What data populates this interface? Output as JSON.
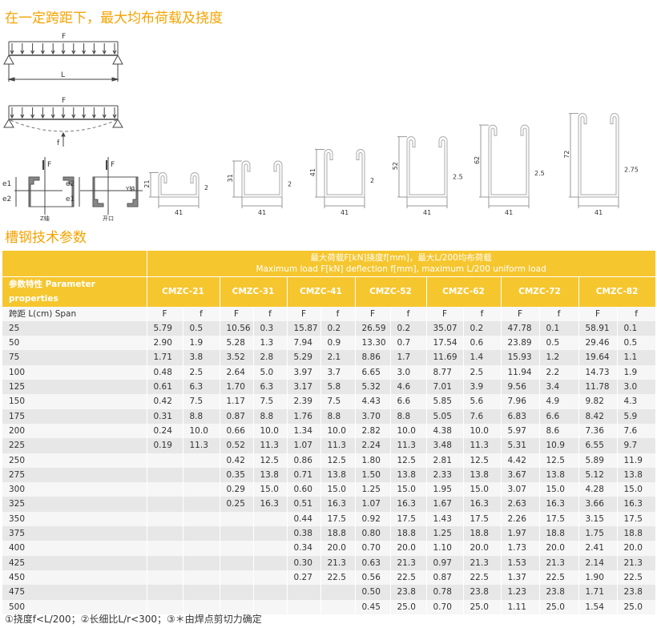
{
  "titles": {
    "load_title": "在一定跨距下，最大均布荷载及挠度",
    "params_title": "槽钢技术参数"
  },
  "diagram_labels": {
    "force": "F",
    "span": "L",
    "deflection": "f",
    "e1": "e1",
    "e2": "e2",
    "z_axis": "Z轴",
    "y_axis": "Y轴",
    "opening": "开口"
  },
  "profiles": [
    {
      "height": "21",
      "width": "41",
      "thickness": "2"
    },
    {
      "height": "31",
      "width": "41",
      "thickness": "2"
    },
    {
      "height": "41",
      "width": "41",
      "thickness": "2"
    },
    {
      "height": "52",
      "width": "41",
      "thickness": "2.5"
    },
    {
      "height": "62",
      "width": "41",
      "thickness": "2.5"
    },
    {
      "height": "72",
      "width": "41",
      "thickness": "2.75"
    }
  ],
  "table": {
    "caption_cn": "最大荷载F[kN]挠度f[mm]，最大L/200均布荷载",
    "caption_en": "Maximum load F[kN] deflection f[mm], maximum L/200 uniform load",
    "param_header": "参数特性 Parameter properties",
    "span_header": "跨距 L(cm)  Span",
    "models": [
      "CMZC-21",
      "CMZC-31",
      "CMZC-41",
      "CMZC-52",
      "CMZC-62",
      "CMZC-72",
      "CMZC-82"
    ],
    "sub": [
      "F",
      "f"
    ],
    "rows": [
      {
        "span": "25",
        "v": [
          "5.79",
          "0.5",
          "10.56",
          "0.3",
          "15.87",
          "0.2",
          "26.59",
          "0.2",
          "35.07",
          "0.2",
          "47.78",
          "0.1",
          "58.91",
          "0.1"
        ]
      },
      {
        "span": "50",
        "v": [
          "2.90",
          "1.9",
          "5.28",
          "1.3",
          "7.94",
          "0.9",
          "13.30",
          "0.7",
          "17.54",
          "0.6",
          "23.89",
          "0.5",
          "29.46",
          "0.5"
        ]
      },
      {
        "span": "75",
        "v": [
          "1.71",
          "3.8",
          "3.52",
          "2.8",
          "5.29",
          "2.1",
          "8.86",
          "1.7",
          "11.69",
          "1.4",
          "15.93",
          "1.2",
          "19.64",
          "1.1"
        ]
      },
      {
        "span": "100",
        "v": [
          "0.48",
          "2.5",
          "2.64",
          "5.0",
          "3.97",
          "3.7",
          "6.65",
          "3.0",
          "8.77",
          "2.5",
          "11.94",
          "2.2",
          "14.73",
          "1.9"
        ]
      },
      {
        "span": "125",
        "v": [
          "0.61",
          "6.3",
          "1.70",
          "6.3",
          "3.17",
          "5.8",
          "5.32",
          "4.6",
          "7.01",
          "3.9",
          "9.56",
          "3.4",
          "11.78",
          "3.0"
        ]
      },
      {
        "span": "150",
        "v": [
          "0.42",
          "7.5",
          "1.17",
          "7.5",
          "2.39",
          "7.5",
          "4.43",
          "6.6",
          "5.85",
          "5.6",
          "7.96",
          "4.9",
          "9.82",
          "4.3"
        ]
      },
      {
        "span": "175",
        "v": [
          "0.31",
          "8.8",
          "0.87",
          "8.8",
          "1.76",
          "8.8",
          "3.70",
          "8.8",
          "5.05",
          "7.6",
          "6.83",
          "6.6",
          "8.42",
          "5.9"
        ]
      },
      {
        "span": "200",
        "v": [
          "0.24",
          "10.0",
          "0.66",
          "10.0",
          "1.34",
          "10.0",
          "2.82",
          "10.0",
          "4.38",
          "10.0",
          "5.97",
          "8.6",
          "7.36",
          "7.6"
        ]
      },
      {
        "span": "225",
        "v": [
          "0.19",
          "11.3",
          "0.52",
          "11.3",
          "1.07",
          "11.3",
          "2.24",
          "11.3",
          "3.48",
          "11.3",
          "5.31",
          "10.9",
          "6.55",
          "9.7"
        ]
      },
      {
        "span": "250",
        "v": [
          "",
          "",
          "0.42",
          "12.5",
          "0.86",
          "12.5",
          "1.80",
          "12.5",
          "2.81",
          "12.5",
          "4.42",
          "12.5",
          "5.89",
          "11.9"
        ]
      },
      {
        "span": "275",
        "v": [
          "",
          "",
          "0.35",
          "13.8",
          "0.71",
          "13.8",
          "1.50",
          "13.8",
          "2.33",
          "13.8",
          "3.67",
          "13.8",
          "5.12",
          "13.8"
        ]
      },
      {
        "span": "300",
        "v": [
          "",
          "",
          "0.29",
          "15.0",
          "0.60",
          "15.0",
          "1.25",
          "15.0",
          "1.95",
          "15.0",
          "3.07",
          "15.0",
          "4.28",
          "15.0"
        ]
      },
      {
        "span": "325",
        "v": [
          "",
          "",
          "0.25",
          "16.3",
          "0.51",
          "16.3",
          "1.07",
          "16.3",
          "1.67",
          "16.3",
          "2.63",
          "16.3",
          "3.66",
          "16.3"
        ]
      },
      {
        "span": "350",
        "v": [
          "",
          "",
          "",
          "",
          "0.44",
          "17.5",
          "0.92",
          "17.5",
          "1.43",
          "17.5",
          "2.26",
          "17.5",
          "3.15",
          "17.5"
        ]
      },
      {
        "span": "375",
        "v": [
          "",
          "",
          "",
          "",
          "0.38",
          "18.8",
          "0.80",
          "18.8",
          "1.25",
          "18.8",
          "1.97",
          "18.8",
          "1.75",
          "18.8"
        ]
      },
      {
        "span": "400",
        "v": [
          "",
          "",
          "",
          "",
          "0.34",
          "20.0",
          "0.70",
          "20.0",
          "1.10",
          "20.0",
          "1.73",
          "20.0",
          "2.41",
          "20.0"
        ]
      },
      {
        "span": "425",
        "v": [
          "",
          "",
          "",
          "",
          "0.30",
          "21.3",
          "0.63",
          "21.3",
          "0.97",
          "21.3",
          "1.53",
          "21.3",
          "2.14",
          "21.3"
        ]
      },
      {
        "span": "450",
        "v": [
          "",
          "",
          "",
          "",
          "0.27",
          "22.5",
          "0.56",
          "22.5",
          "0.87",
          "22.5",
          "1.37",
          "22.5",
          "1.90",
          "22.5"
        ]
      },
      {
        "span": "475",
        "v": [
          "",
          "",
          "",
          "",
          "",
          "",
          "0.50",
          "23.8",
          "0.78",
          "23.8",
          "1.23",
          "23.8",
          "1.71",
          "23.8"
        ]
      },
      {
        "span": "500",
        "v": [
          "",
          "",
          "",
          "",
          "",
          "",
          "0.45",
          "25.0",
          "0.70",
          "25.0",
          "1.11",
          "25.0",
          "1.54",
          "25.0"
        ]
      }
    ]
  },
  "footnote": "①挠度f<L/200；②长细比L/r<300；③＊由焊点剪切力确定",
  "colors": {
    "accent": "#f5a300",
    "header": "#f6c62f"
  }
}
